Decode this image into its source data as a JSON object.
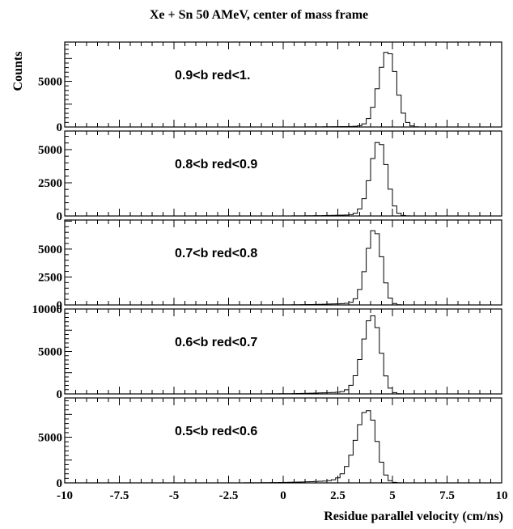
{
  "title": "Xe + Sn 50 AMeV, center of mass frame",
  "chart_data": {
    "type": "histogram",
    "title": "Xe + Sn 50 AMeV, center of mass frame",
    "xlabel": "Residue parallel velocity (cm/ns)",
    "ylabel": "Counts",
    "xlim": [
      -10,
      10
    ],
    "x_ticks": [
      "-10",
      "-7.5",
      "-5",
      "-2.5",
      "0",
      "2.5",
      "5",
      "7.5",
      "10"
    ],
    "bin_width": 0.2,
    "panels": [
      {
        "label": "0.9<b red<1.",
        "ylim": [
          0,
          9300
        ],
        "y_ticks": [
          "0",
          "5000"
        ],
        "peak_x": 4.8,
        "peak_y": 8300,
        "sigma_left": 0.42,
        "sigma_right": 0.38,
        "tail_fraction": 0.012,
        "tail_sigma": 1.6
      },
      {
        "label": "0.8<b red<0.9",
        "ylim": [
          0,
          6400
        ],
        "y_ticks": [
          "0",
          "2500",
          "5000"
        ],
        "peak_x": 4.4,
        "peak_y": 5600,
        "sigma_left": 0.4,
        "sigma_right": 0.35,
        "tail_fraction": 0.018,
        "tail_sigma": 1.6
      },
      {
        "label": "0.7<b red<0.8",
        "ylim": [
          0,
          7600
        ],
        "y_ticks": [
          "0",
          "2500",
          "5000"
        ],
        "peak_x": 4.2,
        "peak_y": 6700,
        "sigma_left": 0.38,
        "sigma_right": 0.32,
        "tail_fraction": 0.025,
        "tail_sigma": 1.7
      },
      {
        "label": "0.6<b red<0.7",
        "ylim": [
          0,
          10000
        ],
        "y_ticks": [
          "0",
          "5000",
          "10000"
        ],
        "peak_x": 4.1,
        "peak_y": 9200,
        "sigma_left": 0.45,
        "sigma_right": 0.35,
        "tail_fraction": 0.03,
        "tail_sigma": 1.8
      },
      {
        "label": "0.5<b red<0.6",
        "ylim": [
          0,
          9300
        ],
        "y_ticks": [
          "0",
          "5000"
        ],
        "peak_x": 3.9,
        "peak_y": 7900,
        "sigma_left": 0.55,
        "sigma_right": 0.38,
        "tail_fraction": 0.04,
        "tail_sigma": 2.0
      }
    ]
  }
}
